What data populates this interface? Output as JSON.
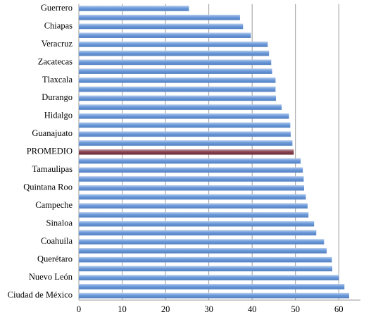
{
  "chart_data": {
    "type": "bar",
    "orientation": "horizontal",
    "categories": [
      "Guerrero",
      null,
      "Chiapas",
      null,
      "Veracruz",
      null,
      "Zacatecas",
      null,
      "Tlaxcala",
      null,
      "Durango",
      null,
      "Hidalgo",
      null,
      "Guanajuato",
      null,
      "PROMEDIO",
      null,
      "Tamaulipas",
      null,
      "Quintana Roo",
      null,
      "Campeche",
      null,
      "Sinaloa",
      null,
      "Coahuila",
      null,
      "Querétaro",
      null,
      "Nuevo León",
      null,
      "Ciudad de México"
    ],
    "values": [
      25.4,
      37.2,
      37.9,
      39.7,
      43.6,
      43.9,
      44.4,
      44.6,
      45.4,
      45.4,
      45.5,
      46.8,
      48.5,
      48.8,
      48.9,
      49.3,
      49.6,
      51.2,
      51.7,
      51.9,
      52.0,
      52.4,
      52.8,
      53.0,
      54.3,
      54.8,
      56.6,
      57.2,
      58.4,
      58.5,
      60.0,
      61.3,
      62.4
    ],
    "colors": [
      "#5b8ed6",
      "#5b8ed6",
      "#5b8ed6",
      "#5b8ed6",
      "#5b8ed6",
      "#5b8ed6",
      "#5b8ed6",
      "#5b8ed6",
      "#5b8ed6",
      "#5b8ed6",
      "#5b8ed6",
      "#5b8ed6",
      "#5b8ed6",
      "#5b8ed6",
      "#5b8ed6",
      "#5b8ed6",
      "#7a2f3e",
      "#5b8ed6",
      "#5b8ed6",
      "#5b8ed6",
      "#5b8ed6",
      "#5b8ed6",
      "#5b8ed6",
      "#5b8ed6",
      "#5b8ed6",
      "#5b8ed6",
      "#5b8ed6",
      "#5b8ed6",
      "#5b8ed6",
      "#5b8ed6",
      "#5b8ed6",
      "#5b8ed6",
      "#5b8ed6"
    ],
    "xlim": [
      0,
      65
    ],
    "xticks": [
      0,
      10,
      20,
      30,
      40,
      50,
      60
    ],
    "grid": true
  }
}
